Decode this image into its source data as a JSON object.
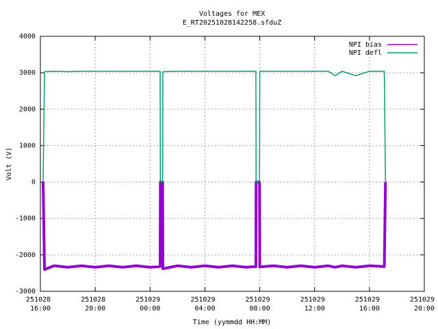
{
  "chart_data": {
    "type": "line",
    "title": "Voltages for MEX",
    "subtitle": "E_RT20251028142258.sfduZ",
    "y_label": "Volt (V)",
    "x_label": "Time (yymmdd HH:MM)",
    "x": [
      "251028 16:12",
      "251028 16:18",
      "251028 17:00",
      "251028 18:00",
      "251028 19:00",
      "251028 20:00",
      "251028 21:00",
      "251028 22:00",
      "251028 23:00",
      "251029 00:00",
      "251029 00:44",
      "251029 00:45",
      "251029 00:55",
      "251029 00:56",
      "251029 02:00",
      "251029 03:00",
      "251029 04:00",
      "251029 05:00",
      "251029 06:00",
      "251029 07:00",
      "251029 07:43",
      "251029 07:44",
      "251029 07:59",
      "251029 08:00",
      "251029 09:00",
      "251029 10:00",
      "251029 11:00",
      "251029 12:00",
      "251029 13:00",
      "251029 13:30",
      "251029 14:00",
      "251029 15:00",
      "251029 16:00",
      "251029 17:05",
      "251029 17:10"
    ],
    "series": [
      {
        "name": "NPI bias",
        "color": "#9400d3",
        "values": [
          0,
          -2400,
          -2300,
          -2340,
          -2300,
          -2340,
          -2300,
          -2340,
          -2300,
          -2340,
          -2320,
          0,
          0,
          -2380,
          -2300,
          -2340,
          -2300,
          -2340,
          -2300,
          -2340,
          -2320,
          0,
          0,
          -2330,
          -2300,
          -2340,
          -2300,
          -2340,
          -2300,
          -2340,
          -2300,
          -2340,
          -2300,
          -2320,
          0
        ]
      },
      {
        "name": "NPI defl",
        "color": "#009e73",
        "values": [
          0,
          3030,
          3040,
          3030,
          3040,
          3040,
          3040,
          3040,
          3040,
          3040,
          3040,
          0,
          0,
          3030,
          3040,
          3040,
          3040,
          3040,
          3040,
          3040,
          3040,
          0,
          0,
          3040,
          3040,
          3040,
          3040,
          3040,
          3040,
          2920,
          3040,
          2920,
          3040,
          3040,
          0
        ]
      }
    ],
    "xlim": [
      "251028 16:00",
      "251029 20:00"
    ],
    "xticks": [
      "251028 16:00",
      "251028 20:00",
      "251029 00:00",
      "251029 04:00",
      "251029 08:00",
      "251029 12:00",
      "251029 16:00",
      "251029 20:00"
    ],
    "ylim": [
      -3000,
      4000
    ],
    "yticks": [
      -3000,
      -2000,
      -1000,
      0,
      1000,
      2000,
      3000,
      4000
    ],
    "grid": true,
    "legend": "top-right"
  }
}
